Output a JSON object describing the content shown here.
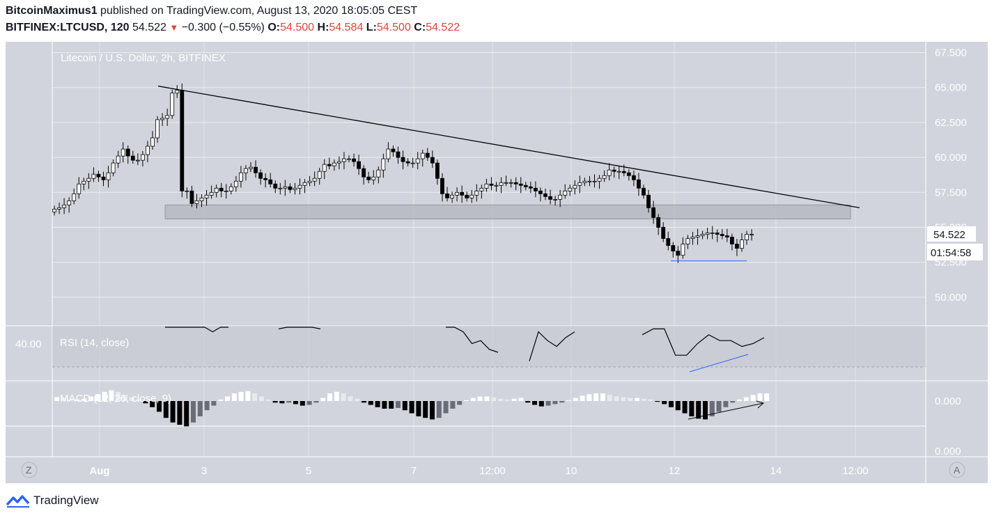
{
  "header": {
    "author": "BitcoinMaximus1",
    "published": "published on TradingView.com, August 13, 2020 18:05:05 CEST",
    "symbol": "BITFINEX:LTCUSD,",
    "interval": "120",
    "price": "54.522",
    "change": "−0.300 (−0.55%)",
    "o_label": "O:",
    "o_value": "54.500",
    "h_label": "H:",
    "h_value": "54.584",
    "l_label": "L:",
    "l_value": "54.500",
    "c_label": "C:",
    "c_value": "54.522"
  },
  "footer": {
    "brand": "TradingView"
  },
  "colors": {
    "pane_bg": "#d1d4dc",
    "down_candle": "#000000",
    "up_candle": "#ffffff",
    "trendline": "#000000",
    "support_zone": "#b2b5be",
    "divergence_line": "#2962ff",
    "grid": "#ffffff"
  },
  "chart_data": {
    "type": "candlestick",
    "title": "Litecoin / U.S. Dollar, 2h, BITFINEX",
    "y_ticks": [
      "67.500",
      "65.000",
      "62.500",
      "60.000",
      "57.500",
      "55.000",
      "52.500",
      "50.000"
    ],
    "ylim": [
      48.1,
      68.5
    ],
    "x_ticks": [
      "Aug",
      "3",
      "5",
      "7",
      "12:00",
      "10",
      "12",
      "14",
      "12:00"
    ],
    "price_label": "54.522",
    "countdown": "01:54:58",
    "closes": [
      56.3,
      56.4,
      56.6,
      56.9,
      57.4,
      58.1,
      58.3,
      58.5,
      58.8,
      58.6,
      58.4,
      58.9,
      59.6,
      60.1,
      60.6,
      60.1,
      59.8,
      59.8,
      60.2,
      60.8,
      61.4,
      62.7,
      62.8,
      63.0,
      64.6,
      64.8,
      57.6,
      57.6,
      56.7,
      56.9,
      57.1,
      57.3,
      57.5,
      57.8,
      57.6,
      57.6,
      57.9,
      58.3,
      58.9,
      59.2,
      59.3,
      58.9,
      58.5,
      58.4,
      58.1,
      57.8,
      57.8,
      57.9,
      57.7,
      57.8,
      58.0,
      58.2,
      58.3,
      58.5,
      59.0,
      59.5,
      59.4,
      59.6,
      59.7,
      59.9,
      59.9,
      59.7,
      59.2,
      58.6,
      58.4,
      58.6,
      59.1,
      59.9,
      60.6,
      60.4,
      60.0,
      59.7,
      59.6,
      59.6,
      59.9,
      60.3,
      60.0,
      59.6,
      58.5,
      57.4,
      57.1,
      57.3,
      57.5,
      57.3,
      57.1,
      57.3,
      57.6,
      57.8,
      58.1,
      58.0,
      58.0,
      58.2,
      58.2,
      58.2,
      58.1,
      58.0,
      57.9,
      57.8,
      57.6,
      57.4,
      57.2,
      57.0,
      57.0,
      57.3,
      57.6,
      57.8,
      58.0,
      58.2,
      58.3,
      58.3,
      58.3,
      58.5,
      58.7,
      59.1,
      59.0,
      59.0,
      58.9,
      58.7,
      58.4,
      57.8,
      57.3,
      56.4,
      55.7,
      55.0,
      54.2,
      53.7,
      53.3,
      53.0,
      53.8,
      54.2,
      54.3,
      54.4,
      54.5,
      54.6,
      54.6,
      54.5,
      54.4,
      54.3,
      53.8,
      53.5,
      54.1,
      54.5,
      54.5
    ],
    "trendline": {
      "from": [
        0,
        65.1
      ],
      "to": [
        150,
        56.4
      ]
    },
    "support_zone": [
      55.6,
      56.6
    ],
    "support_level": 52.6,
    "rsi": {
      "label": "RSI (14, close)",
      "y_tick": "40.00",
      "values": [
        58,
        54,
        57,
        61,
        52,
        45,
        40,
        42,
        44,
        41,
        43,
        44,
        46,
        44,
        41,
        43,
        42,
        40,
        36,
        37,
        34,
        33,
        30,
        40,
        37,
        35,
        38,
        40,
        39,
        41,
        41,
        32,
        32,
        36,
        39,
        37,
        37,
        35,
        36,
        38
      ]
    },
    "macd": {
      "label": "MACD (12, 26, close, 9)",
      "y_ticks": [
        "0.000",
        "0.000"
      ],
      "histogram": [
        0.05,
        0.04,
        0.02,
        0.02,
        0.03,
        0.06,
        0.09,
        0.12,
        0.14,
        0.12,
        0.08,
        0.05,
        0.02,
        -0.03,
        -0.08,
        -0.14,
        -0.22,
        -0.28,
        -0.31,
        -0.33,
        -0.28,
        -0.2,
        -0.12,
        -0.06,
        0.02,
        0.06,
        0.1,
        0.12,
        0.13,
        0.1,
        0.06,
        0.02,
        -0.02,
        -0.03,
        -0.02,
        -0.04,
        -0.06,
        -0.05,
        -0.02,
        0.04,
        0.1,
        0.12,
        0.1,
        0.06,
        0.03,
        -0.02,
        -0.05,
        -0.08,
        -0.1,
        -0.1,
        -0.09,
        -0.12,
        -0.16,
        -0.2,
        -0.22,
        -0.24,
        -0.22,
        -0.16,
        -0.1,
        -0.05,
        0.01,
        0.04,
        0.06,
        0.06,
        0.05,
        0.03,
        0.02,
        0.03,
        0.04,
        -0.02,
        -0.05,
        -0.07,
        -0.06,
        -0.04,
        -0.02,
        0.01,
        0.04,
        0.07,
        0.09,
        0.1,
        0.1,
        0.08,
        0.06,
        0.05,
        0.04,
        0.04,
        0.03,
        0.02,
        -0.01,
        -0.04,
        -0.08,
        -0.12,
        -0.16,
        -0.2,
        -0.23,
        -0.24,
        -0.2,
        -0.14,
        -0.08,
        -0.02,
        0.02,
        0.05,
        0.08,
        0.1,
        0.1
      ]
    }
  },
  "icons": {
    "left_axis_button": "Z",
    "right_axis_button": "A"
  }
}
